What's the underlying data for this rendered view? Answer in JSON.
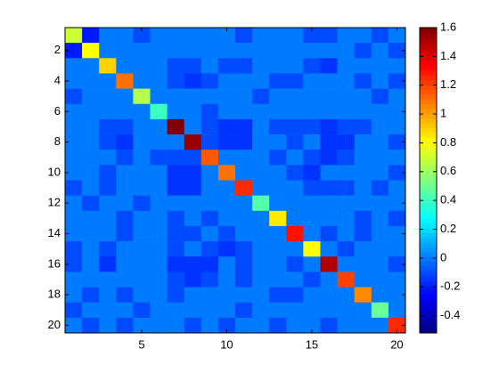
{
  "chart_data": {
    "type": "heatmap",
    "x": [
      1,
      2,
      3,
      4,
      5,
      6,
      7,
      8,
      9,
      10,
      11,
      12,
      13,
      14,
      15,
      16,
      17,
      18,
      19,
      20
    ],
    "y": [
      1,
      2,
      3,
      4,
      5,
      6,
      7,
      8,
      9,
      10,
      11,
      12,
      13,
      14,
      15,
      16,
      17,
      18,
      19,
      20
    ],
    "xlim": [
      0.5,
      20.5
    ],
    "ylim": [
      0.5,
      20.5
    ],
    "xticks": [
      5,
      10,
      15,
      20
    ],
    "yticks": [
      2,
      4,
      6,
      8,
      10,
      12,
      14,
      16,
      18,
      20
    ],
    "colormap": "jet",
    "clim": [
      -0.52,
      1.6
    ],
    "cticks": [
      -0.4,
      -0.2,
      0,
      0.2,
      0.4,
      0.6,
      0.8,
      1,
      1.2,
      1.4,
      1.6
    ],
    "z": [
      [
        0.7,
        -0.2,
        0,
        0,
        -0.1,
        0,
        0,
        0,
        0,
        0,
        -0.1,
        0,
        0,
        0,
        -0.1,
        -0.1,
        0,
        0,
        -0.1,
        0
      ],
      [
        -0.2,
        0.8,
        0,
        0,
        0,
        0,
        0,
        0,
        0,
        0,
        0,
        0,
        0,
        0,
        0,
        0,
        0,
        -0.1,
        0,
        -0.1
      ],
      [
        0,
        0,
        0.9,
        0,
        0,
        0,
        -0.1,
        -0.1,
        0,
        -0.1,
        -0.1,
        0,
        0,
        0,
        -0.1,
        -0.15,
        0,
        0,
        0,
        0
      ],
      [
        0,
        0,
        0,
        1.1,
        0,
        0,
        -0.1,
        -0.15,
        -0.1,
        0,
        0,
        0,
        -0.1,
        -0.1,
        0,
        0,
        0,
        -0.1,
        0,
        -0.1
      ],
      [
        -0.1,
        0,
        0,
        0,
        0.65,
        0,
        0,
        0,
        0,
        0,
        0,
        -0.1,
        0,
        0,
        0,
        0,
        0,
        0,
        -0.1,
        0
      ],
      [
        0,
        0,
        0,
        0,
        0,
        0.4,
        0,
        0,
        -0.1,
        0,
        0,
        0,
        0,
        0,
        0,
        0,
        0,
        0,
        0,
        0
      ],
      [
        0,
        0,
        -0.1,
        -0.1,
        0,
        0,
        1.6,
        0,
        -0.1,
        -0.15,
        -0.15,
        0,
        -0.1,
        -0.1,
        -0.1,
        -0.15,
        -0.1,
        -0.1,
        0,
        0
      ],
      [
        0,
        0,
        -0.1,
        -0.15,
        0,
        0,
        0,
        1.55,
        -0.1,
        -0.15,
        -0.15,
        0,
        0,
        -0.1,
        0,
        -0.15,
        -0.15,
        0,
        0,
        -0.1
      ],
      [
        0,
        0,
        0,
        -0.1,
        0,
        -0.1,
        -0.1,
        -0.1,
        1.15,
        0,
        0,
        0,
        -0.1,
        0,
        -0.1,
        -0.15,
        -0.1,
        0,
        0,
        0
      ],
      [
        0,
        0,
        -0.1,
        0,
        0,
        0,
        -0.15,
        -0.15,
        0,
        1.1,
        0,
        0,
        0,
        -0.1,
        -0.15,
        0,
        0,
        0,
        0,
        -0.1
      ],
      [
        -0.1,
        0,
        -0.1,
        0,
        0,
        0,
        -0.15,
        -0.15,
        0,
        0,
        1.25,
        0,
        0,
        0,
        -0.1,
        -0.1,
        -0.1,
        0,
        -0.1,
        0
      ],
      [
        0,
        -0.1,
        0,
        0,
        -0.1,
        0,
        0,
        0,
        0,
        0,
        0,
        0.45,
        0,
        0,
        0,
        0,
        0,
        0,
        0,
        0
      ],
      [
        0,
        0,
        0,
        -0.1,
        0,
        0,
        -0.1,
        0,
        -0.1,
        0,
        0,
        0,
        0.85,
        0,
        0,
        0,
        0,
        -0.1,
        0,
        -0.1
      ],
      [
        0,
        0,
        0,
        -0.1,
        0,
        0,
        -0.1,
        -0.1,
        0,
        -0.1,
        0,
        0,
        0,
        1.3,
        0,
        -0.1,
        0,
        -0.1,
        0,
        0
      ],
      [
        -0.1,
        0,
        -0.1,
        0,
        0,
        0,
        -0.1,
        0,
        -0.1,
        -0.15,
        -0.1,
        0,
        0,
        0,
        0.8,
        0,
        -0.1,
        0,
        0,
        0
      ],
      [
        -0.1,
        0,
        -0.15,
        0,
        0,
        0,
        -0.15,
        -0.15,
        -0.15,
        0,
        -0.1,
        0,
        0,
        -0.1,
        0,
        1.5,
        0,
        0,
        0,
        -0.1
      ],
      [
        0,
        0,
        0,
        0,
        0,
        0,
        -0.1,
        -0.15,
        -0.1,
        0,
        -0.1,
        0,
        0,
        0,
        -0.1,
        0,
        1.2,
        0,
        0,
        0
      ],
      [
        0,
        -0.1,
        0,
        -0.1,
        0,
        0,
        -0.1,
        0,
        0,
        0,
        0,
        0,
        -0.1,
        -0.1,
        0,
        0,
        0,
        1.05,
        0,
        0
      ],
      [
        -0.1,
        0,
        0,
        0,
        -0.1,
        0,
        0,
        0,
        0,
        0,
        -0.1,
        0,
        0,
        0,
        0,
        0,
        0,
        0,
        0.5,
        0
      ],
      [
        0,
        -0.1,
        0,
        -0.1,
        0,
        0,
        0,
        -0.1,
        0,
        -0.1,
        0,
        0,
        -0.1,
        0,
        0,
        -0.1,
        0,
        0,
        0,
        1.25
      ]
    ]
  }
}
